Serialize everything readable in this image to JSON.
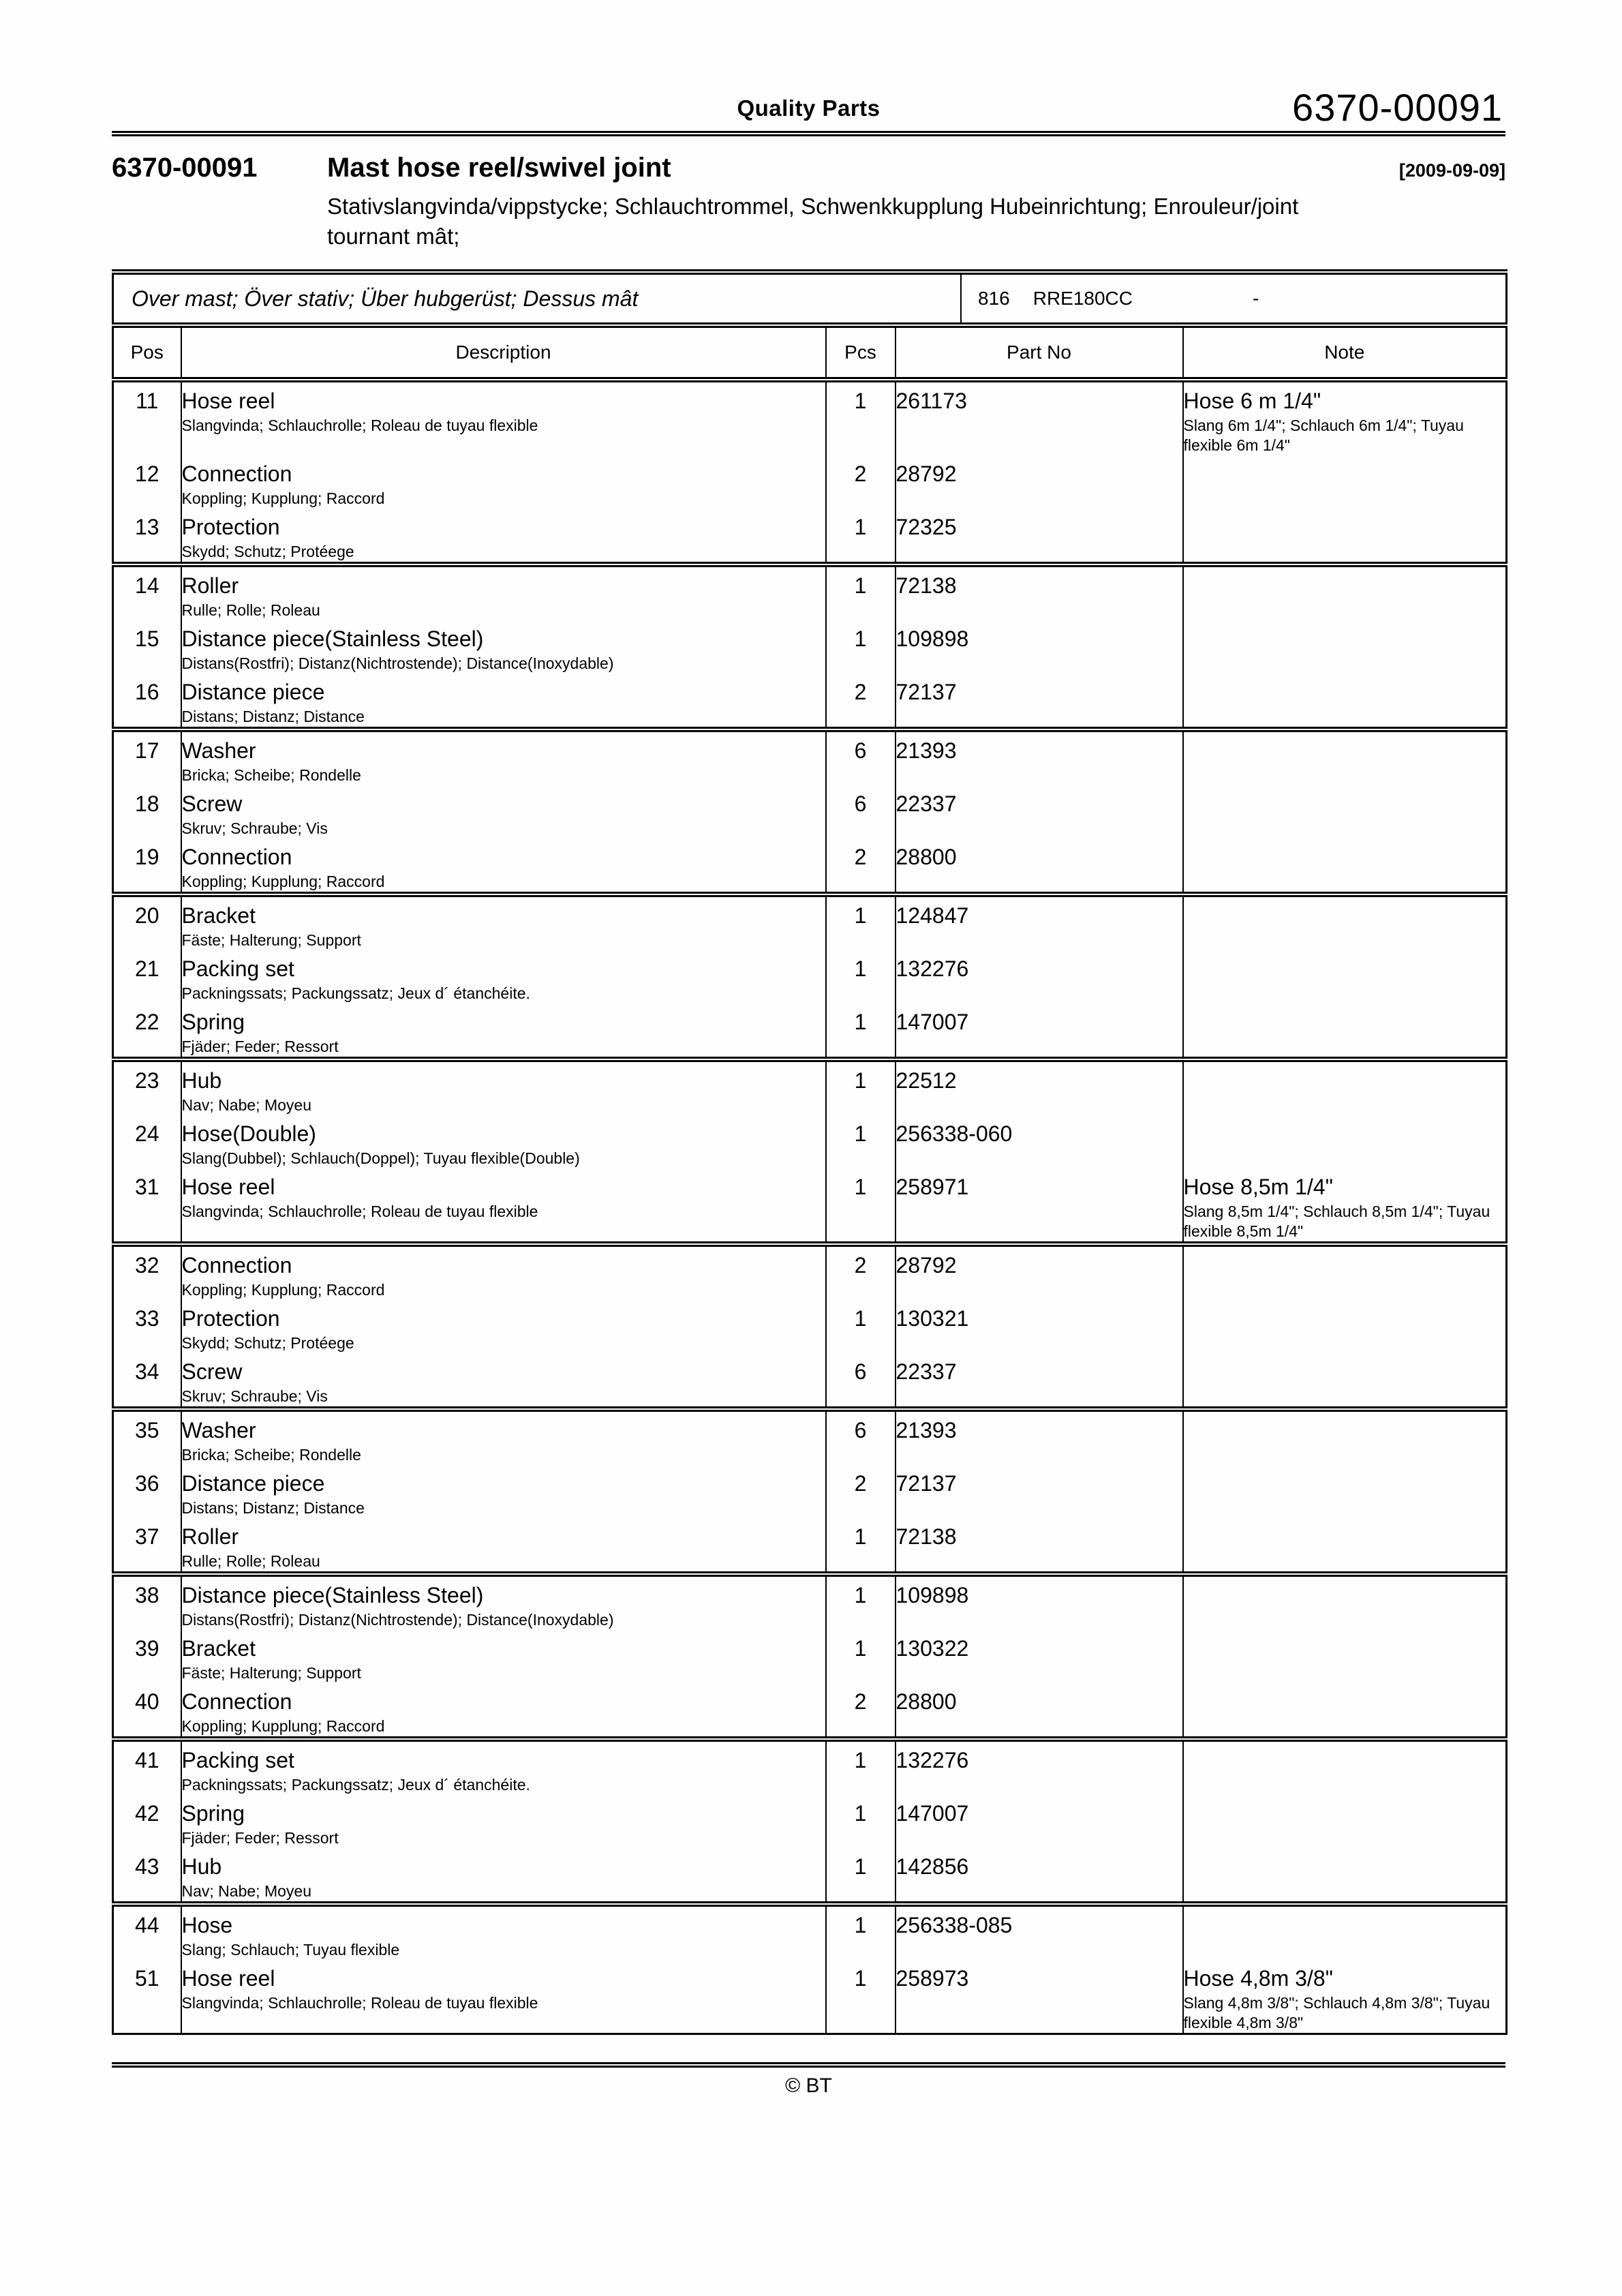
{
  "masthead": {
    "center_label": "Quality Parts",
    "doc_number": "6370-00091"
  },
  "title_block": {
    "number": "6370-00091",
    "title": "Mast hose reel/swivel joint",
    "date": "[2009-09-09]",
    "subtitle_lines": [
      "Stativslangvinda/vippstycke; Schlauchtrommel, Schwenkkupplung Hubeinrichtung; Enrouleur/joint",
      "tournant mât;"
    ]
  },
  "table": {
    "section": {
      "scope": "Over mast; Över stativ; Über hubgerüst; Dessus mât",
      "code": "816",
      "model": "RRE180CC",
      "dash": "-"
    },
    "columns": [
      "Pos",
      "Description",
      "Pcs",
      "Part No",
      "Note"
    ],
    "rows": [
      {
        "pos": "11",
        "desc": "Hose reel",
        "sub": "Slangvinda; Schlauchrolle; Roleau de tuyau flexible",
        "pcs": "1",
        "part": "261173",
        "note": "Hose 6 m 1/4\"",
        "note_sub": "Slang 6m 1/4\"; Schlauch 6m 1/4\"; Tuyau flexible 6m 1/4\"",
        "grp": false
      },
      {
        "pos": "12",
        "desc": "Connection",
        "sub": "Koppling; Kupplung; Raccord",
        "pcs": "2",
        "part": "28792",
        "note": "",
        "note_sub": "",
        "grp": false
      },
      {
        "pos": "13",
        "desc": "Protection",
        "sub": "Skydd; Schutz; Protéege",
        "pcs": "1",
        "part": "72325",
        "note": "",
        "note_sub": "",
        "grp": false
      },
      {
        "pos": "14",
        "desc": "Roller",
        "sub": "Rulle; Rolle; Roleau",
        "pcs": "1",
        "part": "72138",
        "note": "",
        "note_sub": "",
        "grp": true
      },
      {
        "pos": "15",
        "desc": "Distance piece(Stainless Steel)",
        "sub": "Distans(Rostfri); Distanz(Nichtrostende); Distance(Inoxydable)",
        "pcs": "1",
        "part": "109898",
        "note": "",
        "note_sub": "",
        "grp": false
      },
      {
        "pos": "16",
        "desc": "Distance piece",
        "sub": "Distans; Distanz; Distance",
        "pcs": "2",
        "part": "72137",
        "note": "",
        "note_sub": "",
        "grp": false
      },
      {
        "pos": "17",
        "desc": "Washer",
        "sub": "Bricka; Scheibe; Rondelle",
        "pcs": "6",
        "part": "21393",
        "note": "",
        "note_sub": "",
        "grp": true
      },
      {
        "pos": "18",
        "desc": "Screw",
        "sub": "Skruv; Schraube; Vis",
        "pcs": "6",
        "part": "22337",
        "note": "",
        "note_sub": "",
        "grp": false
      },
      {
        "pos": "19",
        "desc": "Connection",
        "sub": "Koppling; Kupplung; Raccord",
        "pcs": "2",
        "part": "28800",
        "note": "",
        "note_sub": "",
        "grp": false
      },
      {
        "pos": "20",
        "desc": "Bracket",
        "sub": "Fäste; Halterung; Support",
        "pcs": "1",
        "part": "124847",
        "note": "",
        "note_sub": "",
        "grp": true
      },
      {
        "pos": "21",
        "desc": "Packing set",
        "sub": "Packningssats; Packungssatz; Jeux d´ étanchéite.",
        "pcs": "1",
        "part": "132276",
        "note": "",
        "note_sub": "",
        "grp": false
      },
      {
        "pos": "22",
        "desc": "Spring",
        "sub": "Fjäder; Feder; Ressort",
        "pcs": "1",
        "part": "147007",
        "note": "",
        "note_sub": "",
        "grp": false
      },
      {
        "pos": "23",
        "desc": "Hub",
        "sub": "Nav; Nabe; Moyeu",
        "pcs": "1",
        "part": "22512",
        "note": "",
        "note_sub": "",
        "grp": true
      },
      {
        "pos": "24",
        "desc": "Hose(Double)",
        "sub": "Slang(Dubbel); Schlauch(Doppel); Tuyau flexible(Double)",
        "pcs": "1",
        "part": "256338-060",
        "note": "",
        "note_sub": "",
        "grp": false
      },
      {
        "pos": "31",
        "desc": "Hose reel",
        "sub": "Slangvinda; Schlauchrolle; Roleau de tuyau flexible",
        "pcs": "1",
        "part": "258971",
        "note": "Hose 8,5m 1/4\"",
        "note_sub": "Slang 8,5m 1/4\"; Schlauch 8,5m 1/4\"; Tuyau flexible 8,5m 1/4\"",
        "grp": false
      },
      {
        "pos": "32",
        "desc": "Connection",
        "sub": "Koppling; Kupplung; Raccord",
        "pcs": "2",
        "part": "28792",
        "note": "",
        "note_sub": "",
        "grp": true
      },
      {
        "pos": "33",
        "desc": "Protection",
        "sub": "Skydd; Schutz; Protéege",
        "pcs": "1",
        "part": "130321",
        "note": "",
        "note_sub": "",
        "grp": false
      },
      {
        "pos": "34",
        "desc": "Screw",
        "sub": "Skruv; Schraube; Vis",
        "pcs": "6",
        "part": "22337",
        "note": "",
        "note_sub": "",
        "grp": false
      },
      {
        "pos": "35",
        "desc": "Washer",
        "sub": "Bricka; Scheibe; Rondelle",
        "pcs": "6",
        "part": "21393",
        "note": "",
        "note_sub": "",
        "grp": true
      },
      {
        "pos": "36",
        "desc": "Distance piece",
        "sub": "Distans; Distanz; Distance",
        "pcs": "2",
        "part": "72137",
        "note": "",
        "note_sub": "",
        "grp": false
      },
      {
        "pos": "37",
        "desc": "Roller",
        "sub": "Rulle; Rolle; Roleau",
        "pcs": "1",
        "part": "72138",
        "note": "",
        "note_sub": "",
        "grp": false
      },
      {
        "pos": "38",
        "desc": "Distance piece(Stainless Steel)",
        "sub": "Distans(Rostfri); Distanz(Nichtrostende); Distance(Inoxydable)",
        "pcs": "1",
        "part": "109898",
        "note": "",
        "note_sub": "",
        "grp": true
      },
      {
        "pos": "39",
        "desc": "Bracket",
        "sub": "Fäste; Halterung; Support",
        "pcs": "1",
        "part": "130322",
        "note": "",
        "note_sub": "",
        "grp": false
      },
      {
        "pos": "40",
        "desc": "Connection",
        "sub": "Koppling; Kupplung; Raccord",
        "pcs": "2",
        "part": "28800",
        "note": "",
        "note_sub": "",
        "grp": false
      },
      {
        "pos": "41",
        "desc": "Packing set",
        "sub": "Packningssats; Packungssatz; Jeux d´ étanchéite.",
        "pcs": "1",
        "part": "132276",
        "note": "",
        "note_sub": "",
        "grp": true
      },
      {
        "pos": "42",
        "desc": "Spring",
        "sub": "Fjäder; Feder; Ressort",
        "pcs": "1",
        "part": "147007",
        "note": "",
        "note_sub": "",
        "grp": false
      },
      {
        "pos": "43",
        "desc": "Hub",
        "sub": "Nav; Nabe; Moyeu",
        "pcs": "1",
        "part": "142856",
        "note": "",
        "note_sub": "",
        "grp": false
      },
      {
        "pos": "44",
        "desc": "Hose",
        "sub": "Slang; Schlauch; Tuyau flexible",
        "pcs": "1",
        "part": "256338-085",
        "note": "",
        "note_sub": "",
        "grp": true
      },
      {
        "pos": "51",
        "desc": "Hose reel",
        "sub": "Slangvinda; Schlauchrolle; Roleau de tuyau flexible",
        "pcs": "1",
        "part": "258973",
        "note": "Hose 4,8m 3/8\"",
        "note_sub": "Slang 4,8m 3/8\"; Schlauch 4,8m 3/8\"; Tuyau flexible 4,8m 3/8\"",
        "grp": false
      }
    ]
  },
  "footer": {
    "copyright": "© BT"
  }
}
